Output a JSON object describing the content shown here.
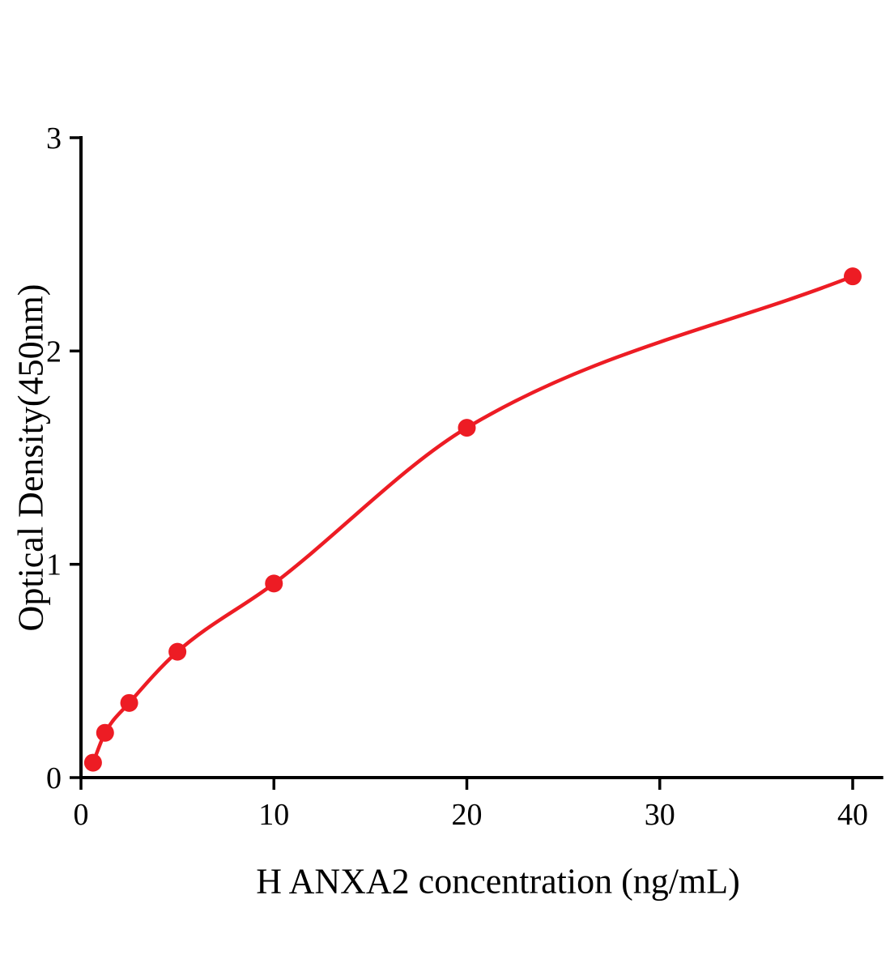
{
  "chart_data": {
    "type": "scatter",
    "title": "",
    "xlabel": "H ANXA2 concentration (ng/mL)",
    "ylabel": "Optical Density(450nm)",
    "x": [
      0.625,
      1.25,
      2.5,
      5,
      10,
      20,
      40
    ],
    "y": [
      0.07,
      0.21,
      0.35,
      0.59,
      0.91,
      1.64,
      2.35
    ],
    "curve": "fitted-smooth-through-points",
    "xticks": [
      0,
      10,
      20,
      30,
      40
    ],
    "yticks": [
      0,
      1,
      2,
      3
    ],
    "xlim": [
      0,
      41.5
    ],
    "ylim": [
      0,
      3
    ],
    "grid": false,
    "legend": null,
    "series_name": "standard-curve",
    "series_color": "#ed1c24",
    "axis_color": "#000000"
  }
}
